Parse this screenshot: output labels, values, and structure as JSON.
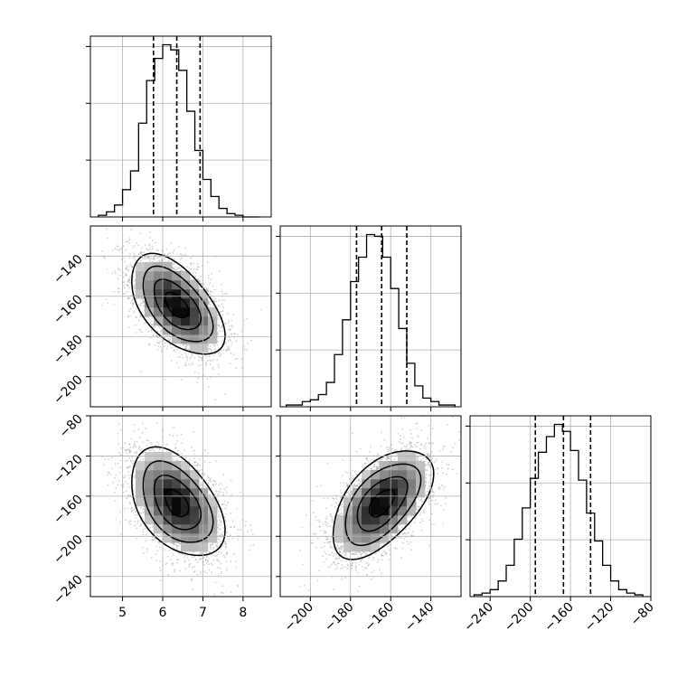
{
  "chart_data": {
    "type": "corner",
    "colors": {
      "line": "#000000",
      "grid": "#b0b0b0",
      "scatter": "#9a9a9a",
      "dashed": "#000000"
    },
    "grid": true,
    "parameters": [
      {
        "range": [
          4.2,
          8.7
        ],
        "ticks": [
          5,
          6,
          7,
          8
        ],
        "tick_labels": [
          "5",
          "6",
          "7",
          "8"
        ],
        "quantiles": [
          5.77,
          6.35,
          6.93
        ],
        "mean": 6.35,
        "sd": 0.58
      },
      {
        "range": [
          -215,
          -125
        ],
        "ticks": [
          -200,
          -180,
          -160,
          -140
        ],
        "tick_labels": [
          "−200",
          "−180",
          "−160",
          "−140"
        ],
        "quantiles": [
          -177,
          -164.5,
          -152
        ],
        "mean": -164.5,
        "sd": 12.5
      },
      {
        "range": [
          -260,
          -80
        ],
        "ticks": [
          -240,
          -200,
          -160,
          -120,
          -80
        ],
        "tick_labels": [
          "−240",
          "−200",
          "−160",
          "−120",
          "−80"
        ],
        "quantiles": [
          -195,
          -167,
          -140
        ],
        "mean": -167,
        "sd": 27
      }
    ],
    "panels": [
      {
        "type": "hist",
        "param": 0,
        "bins_x": [
          4.4,
          4.6,
          4.8,
          5.0,
          5.2,
          5.4,
          5.6,
          5.8,
          6.0,
          6.2,
          6.4,
          6.6,
          6.8,
          7.0,
          7.2,
          7.4,
          7.6,
          7.8,
          8.0,
          8.2,
          8.4
        ],
        "counts": [
          1,
          3,
          7,
          16,
          27,
          55,
          80,
          93,
          101,
          98,
          86,
          62,
          39,
          22,
          12,
          5,
          2,
          1,
          0,
          0
        ]
      },
      {
        "type": "hist",
        "param": 1,
        "bins_x": [
          -212,
          -208,
          -204,
          -200,
          -196,
          -192,
          -188,
          -184,
          -180,
          -176,
          -172,
          -168,
          -164,
          -160,
          -156,
          -152,
          -148,
          -144,
          -140,
          -136,
          -132,
          -128
        ],
        "counts": [
          1,
          1,
          3,
          4,
          7,
          14,
          30,
          50,
          72,
          86,
          99,
          98,
          86,
          68,
          45,
          25,
          12,
          5,
          3,
          1,
          1
        ]
      },
      {
        "type": "hist",
        "param": 2,
        "bins_x": [
          -256,
          -248,
          -240,
          -232,
          -224,
          -216,
          -208,
          -200,
          -192,
          -184,
          -176,
          -168,
          -160,
          -152,
          -144,
          -136,
          -128,
          -120,
          -112,
          -104,
          -96,
          -88
        ],
        "counts": [
          1,
          2,
          4,
          9,
          18,
          33,
          51,
          68,
          83,
          92,
          99,
          95,
          84,
          67,
          48,
          32,
          18,
          9,
          4,
          2,
          1
        ]
      },
      {
        "type": "2d",
        "x_param": 0,
        "y_param": 1,
        "rho": -0.55
      },
      {
        "type": "2d",
        "x_param": 0,
        "y_param": 2,
        "rho": -0.45
      },
      {
        "type": "2d",
        "x_param": 1,
        "y_param": 2,
        "rho": 0.55
      }
    ]
  }
}
